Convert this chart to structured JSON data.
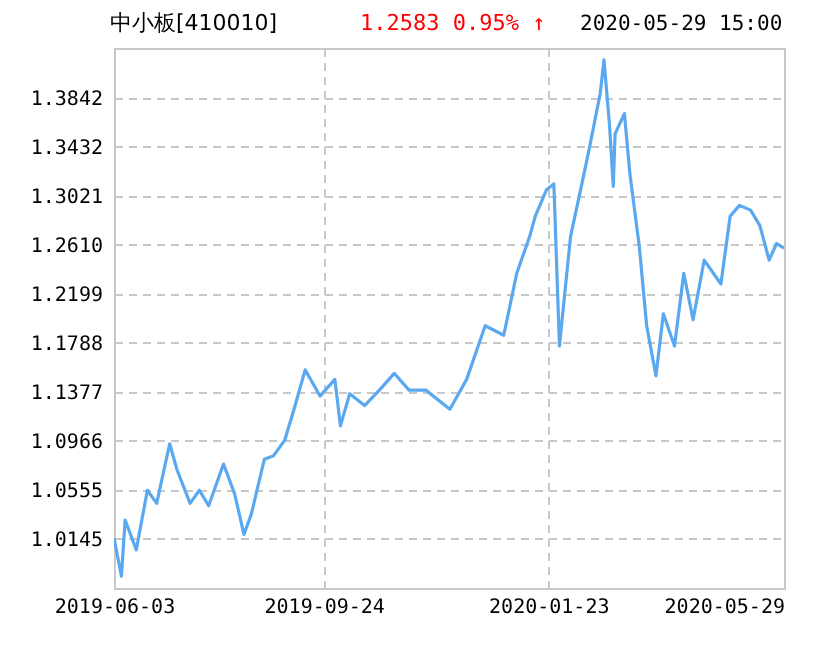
{
  "chart_data": {
    "type": "line",
    "title": "中小板[410010]",
    "subtitle": "2020-05-29 15:00",
    "annotations": [
      "1.2583 0.95% ↑"
    ],
    "x": [
      "2019-06-03",
      "2019-06-07",
      "2019-06-09",
      "2019-06-15",
      "2019-06-21",
      "2019-06-26",
      "2019-07-03",
      "2019-07-07",
      "2019-07-14",
      "2019-07-19",
      "2019-07-24",
      "2019-08-01",
      "2019-08-07",
      "2019-08-12",
      "2019-08-16",
      "2019-08-23",
      "2019-08-28",
      "2019-09-03",
      "2019-09-08",
      "2019-09-14",
      "2019-09-22",
      "2019-09-30",
      "2019-10-03",
      "2019-10-08",
      "2019-10-16",
      "2019-10-24",
      "2019-11-01",
      "2019-11-09",
      "2019-11-18",
      "2019-12-01",
      "2019-12-10",
      "2019-12-20",
      "2019-12-30",
      "2020-01-06",
      "2020-01-13",
      "2020-01-16",
      "2020-01-22",
      "2020-01-26",
      "2020-01-29",
      "2020-02-04",
      "2020-02-09",
      "2020-02-14",
      "2020-02-20",
      "2020-02-22",
      "2020-02-25",
      "2020-02-27",
      "2020-02-28",
      "2020-03-04",
      "2020-03-07",
      "2020-03-12",
      "2020-03-16",
      "2020-03-21",
      "2020-03-25",
      "2020-03-31",
      "2020-04-05",
      "2020-04-10",
      "2020-04-16",
      "2020-04-25",
      "2020-04-30",
      "2020-05-05",
      "2020-05-11",
      "2020-05-16",
      "2020-05-21",
      "2020-05-25",
      "2020-05-29"
    ],
    "series": [
      {
        "color": "#5aa9f0",
        "values": [
          1.015,
          0.983,
          1.03,
          1.005,
          1.055,
          1.044,
          1.094,
          1.072,
          1.044,
          1.055,
          1.042,
          1.077,
          1.052,
          1.018,
          1.035,
          1.081,
          1.084,
          1.097,
          1.123,
          1.156,
          1.134,
          1.148,
          1.109,
          1.136,
          1.126,
          1.139,
          1.153,
          1.139,
          1.139,
          1.123,
          1.148,
          1.193,
          1.185,
          1.237,
          1.268,
          1.285,
          1.307,
          1.312,
          1.176,
          1.268,
          1.304,
          1.341,
          1.388,
          1.416,
          1.361,
          1.31,
          1.354,
          1.371,
          1.32,
          1.26,
          1.193,
          1.151,
          1.203,
          1.176,
          1.237,
          1.198,
          1.248,
          1.228,
          1.285,
          1.294,
          1.29,
          1.277,
          1.248,
          1.262,
          1.258
        ]
      }
    ],
    "xlim": [
      "2019-06-03",
      "2020-05-29"
    ],
    "xticks": [
      "2019-06-03",
      "2019-09-24",
      "2020-01-23",
      "2020-05-29"
    ],
    "ylim": [
      0.973,
      1.426
    ],
    "yticks": [
      1.0145,
      1.0555,
      1.0966,
      1.1377,
      1.1788,
      1.2199,
      {
        "value": 1.261,
        "label": "1.2610"
      },
      1.3021,
      1.3432,
      1.3842
    ],
    "grid": true,
    "line_style": "solid"
  }
}
